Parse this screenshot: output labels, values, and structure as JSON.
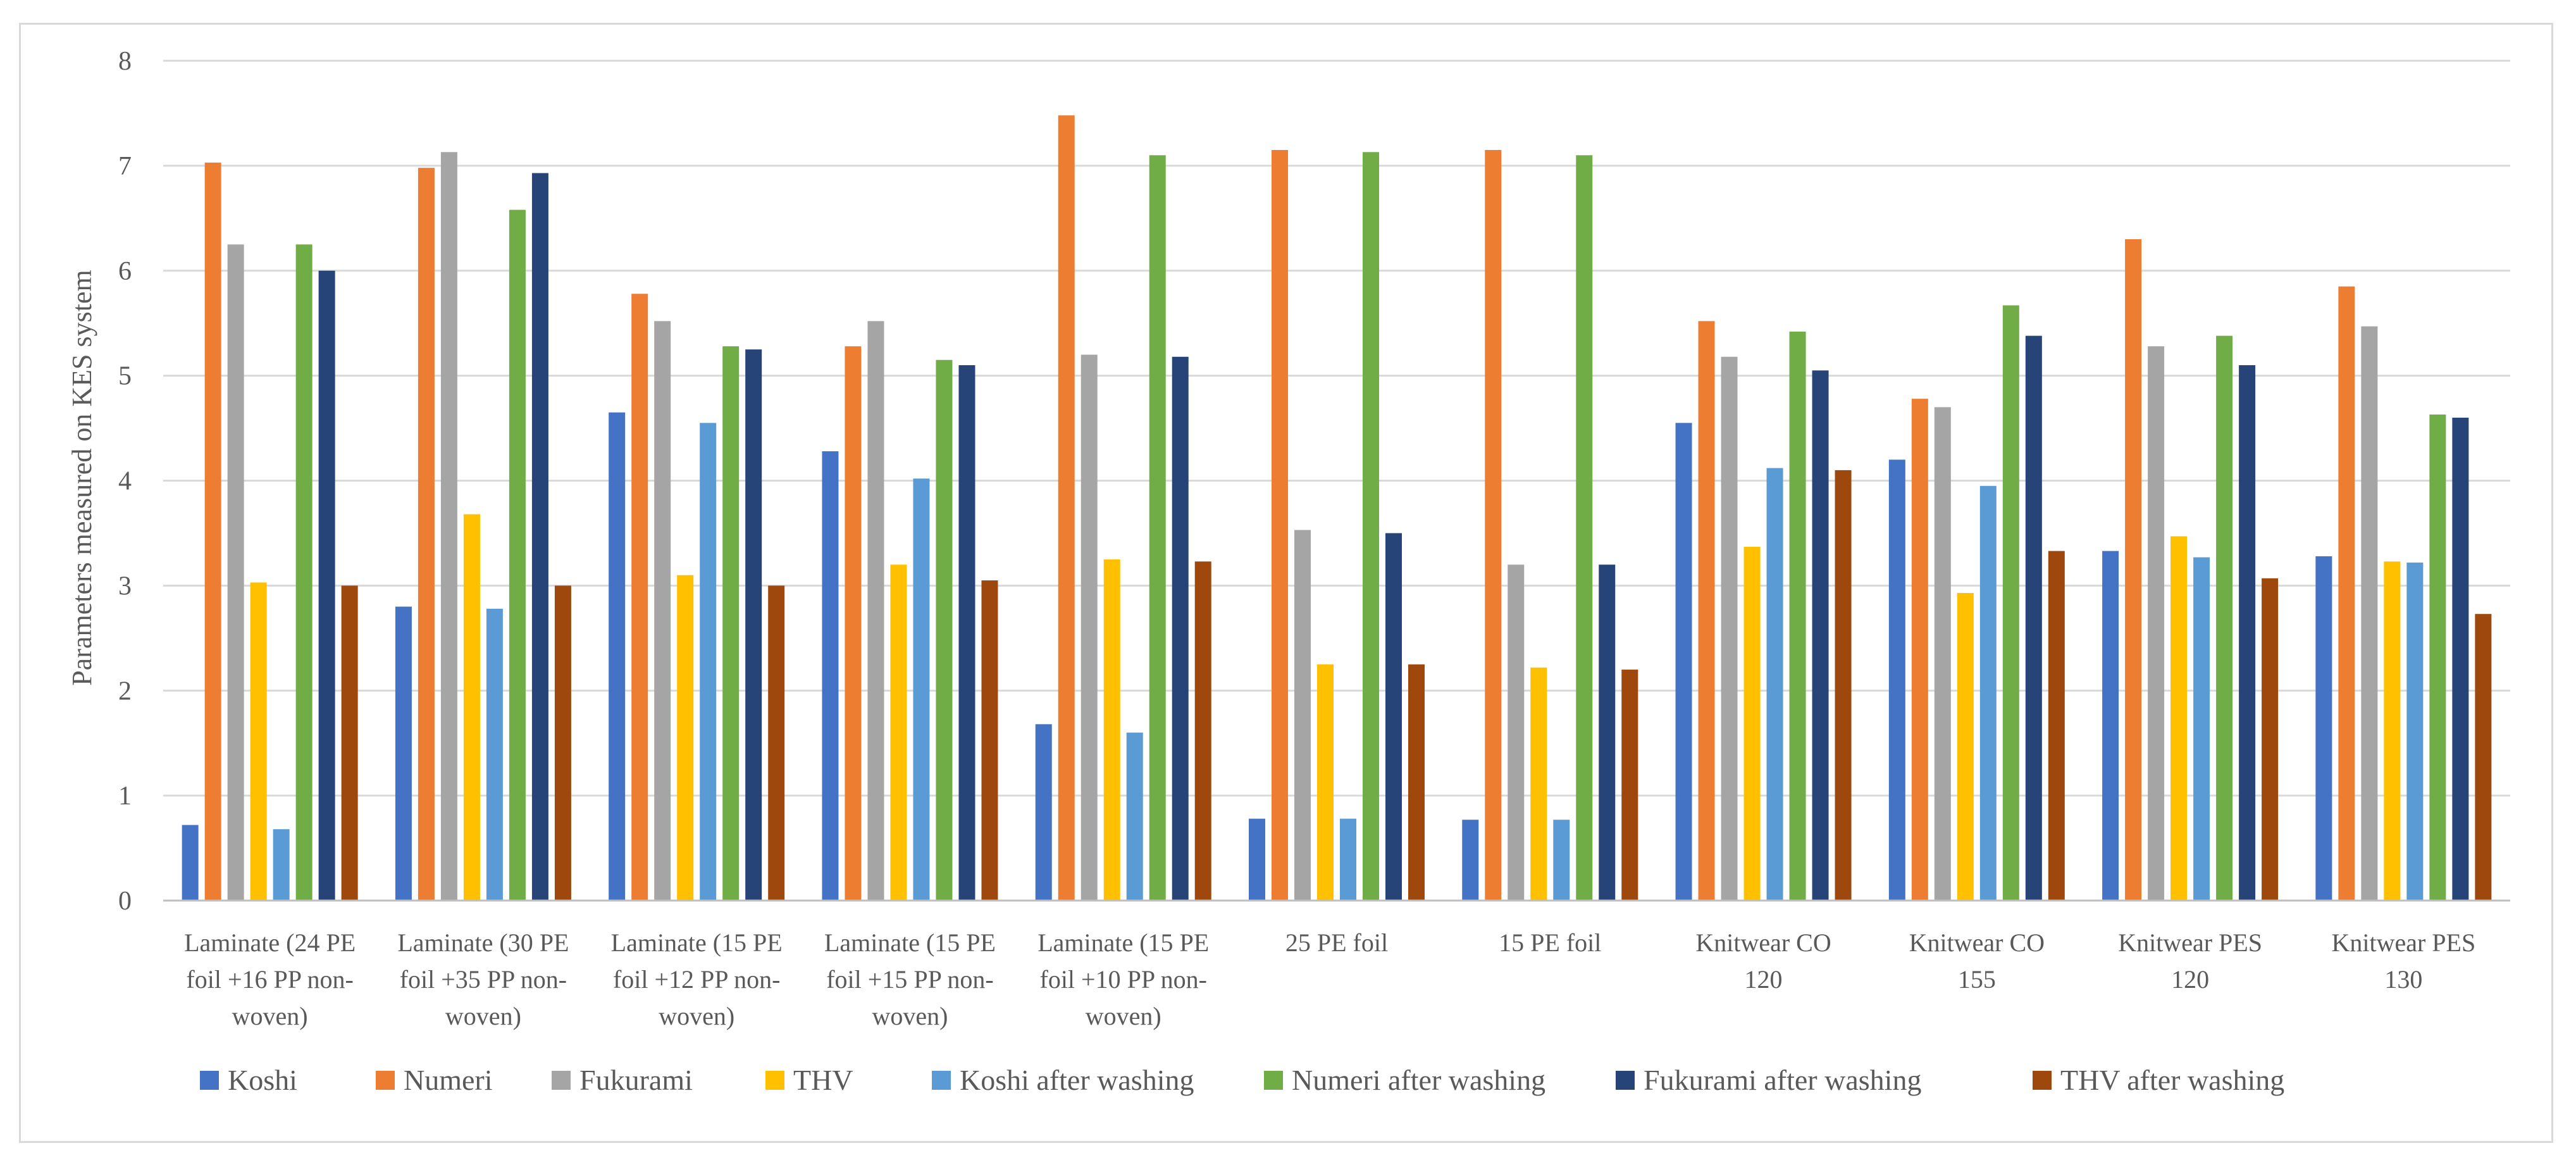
{
  "chart_data": {
    "type": "bar",
    "title": "",
    "xlabel": "",
    "ylabel": "Parameters measured on KES system",
    "ylim": [
      0,
      8
    ],
    "yticks": [
      "0",
      "1",
      "2",
      "3",
      "4",
      "5",
      "6",
      "7",
      "8"
    ],
    "grid": true,
    "legend_position": "bottom",
    "categories": [
      [
        "Laminate (24 PE",
        "foil +16 PP non-",
        "woven)"
      ],
      [
        "Laminate (30 PE",
        "foil +35 PP non-",
        "woven)"
      ],
      [
        "Laminate (15 PE",
        "foil +12 PP non-",
        "woven)"
      ],
      [
        "Laminate (15 PE",
        "foil +15 PP non-",
        "woven)"
      ],
      [
        "Laminate (15 PE",
        "foil +10 PP non-",
        "woven)"
      ],
      [
        "25 PE foil"
      ],
      [
        "15 PE foil"
      ],
      [
        "Knitwear CO",
        "120"
      ],
      [
        "Knitwear CO",
        "155"
      ],
      [
        "Knitwear PES",
        "120"
      ],
      [
        "Knitwear PES",
        "130"
      ]
    ],
    "series": [
      {
        "name": "Koshi",
        "color": "#4472c4",
        "values": [
          0.72,
          2.8,
          4.65,
          4.28,
          1.68,
          0.78,
          0.77,
          4.55,
          4.2,
          3.33,
          3.28
        ]
      },
      {
        "name": "Numeri",
        "color": "#ed7d31",
        "values": [
          7.03,
          6.98,
          5.78,
          5.28,
          7.48,
          7.15,
          7.15,
          5.52,
          4.78,
          6.3,
          5.85
        ]
      },
      {
        "name": "Fukurami",
        "color": "#a5a5a5",
        "values": [
          6.25,
          7.13,
          5.52,
          5.52,
          5.2,
          3.53,
          3.2,
          5.18,
          4.7,
          5.28,
          5.47
        ]
      },
      {
        "name": "THV",
        "color": "#ffc000",
        "values": [
          3.03,
          3.68,
          3.1,
          3.2,
          3.25,
          2.25,
          2.22,
          3.37,
          2.93,
          3.47,
          3.23
        ]
      },
      {
        "name": "Koshi after washing",
        "color": "#5b9bd5",
        "values": [
          0.68,
          2.78,
          4.55,
          4.02,
          1.6,
          0.78,
          0.77,
          4.12,
          3.95,
          3.27,
          3.22
        ]
      },
      {
        "name": "Numeri after washing",
        "color": "#70ad47",
        "values": [
          6.25,
          6.58,
          5.28,
          5.15,
          7.1,
          7.13,
          7.1,
          5.42,
          5.67,
          5.38,
          4.63
        ]
      },
      {
        "name": "Fukurami after washing",
        "color": "#264478",
        "values": [
          6.0,
          6.93,
          5.25,
          5.1,
          5.18,
          3.5,
          3.2,
          5.05,
          5.38,
          5.1,
          4.6
        ]
      },
      {
        "name": "THV after washing",
        "color": "#9e480e",
        "values": [
          3.0,
          3.0,
          3.0,
          3.05,
          3.23,
          2.25,
          2.2,
          4.1,
          3.33,
          3.07,
          2.73
        ]
      }
    ]
  }
}
